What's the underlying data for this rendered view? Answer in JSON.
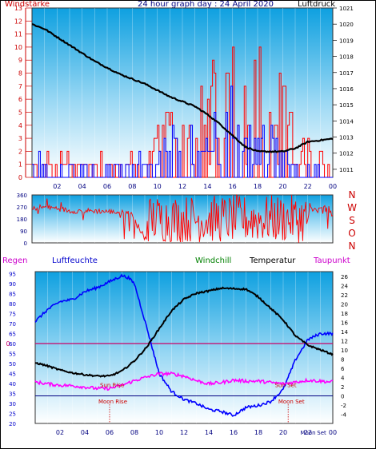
{
  "header": {
    "windstaerke": "Windstärke",
    "title": "24 hour graph day : 24 April 2020",
    "luftdruck": "Luftdruck"
  },
  "middle_header": {
    "regen": "Regen",
    "luftfeuchte": "Luftfeuchte",
    "windchill": "Windchill",
    "temperatur": "Temperatur",
    "taupunkt": "Taupunkt"
  },
  "colors": {
    "wind_speed": "#ff0000",
    "wind_gust": "#0000ff",
    "pressure": "#000000",
    "wind_direction": "#ff0000",
    "humidity": "#0000ff",
    "temperature": "#000000",
    "dewpoint": "#ff00ff",
    "rain_line": "#cc0066",
    "zero_line": "#000080",
    "axis_left": "#cc0000",
    "axis_right": "#000000",
    "panel_gradient_top": "#00a8e8",
    "panel_gradient_bottom": "#ffffff"
  },
  "chart_data": [
    {
      "type": "line",
      "panel": "wind-pressure",
      "x_ticks": [
        "02",
        "04",
        "06",
        "08",
        "10",
        "12",
        "14",
        "16",
        "18",
        "20",
        "22",
        "00"
      ],
      "left_axis": {
        "label": "Windstärke",
        "ylim": [
          0,
          13
        ],
        "ticks": [
          "0",
          "1",
          "2",
          "3",
          "4",
          "5",
          "6",
          "7",
          "8",
          "9",
          "10",
          "11",
          "12",
          "13"
        ]
      },
      "right_axis": {
        "label": "Luftdruck",
        "ylim": [
          1010.5,
          1021
        ],
        "ticks": [
          "1011",
          "1012",
          "1013",
          "1014",
          "1015",
          "1016",
          "1017",
          "1018",
          "1019",
          "1020",
          "1021"
        ]
      },
      "series": [
        {
          "name": "Luftdruck",
          "axis": "right",
          "x": [
            0.0,
            1.0,
            2.0,
            3.0,
            4.0,
            5.0,
            6.0,
            7.0,
            8.0,
            9.0,
            10.0,
            11.0,
            12.0,
            13.0,
            14.0,
            15.0,
            16.0,
            17.0,
            18.0,
            19.0,
            20.0,
            21.0,
            22.0,
            23.0,
            24.0
          ],
          "y": [
            1020.0,
            1019.7,
            1019.2,
            1018.7,
            1018.2,
            1017.7,
            1017.3,
            1016.9,
            1016.6,
            1016.3,
            1015.9,
            1015.5,
            1015.2,
            1014.9,
            1014.4,
            1013.8,
            1013.1,
            1012.4,
            1012.1,
            1012.1,
            1012.1,
            1012.3,
            1012.7,
            1012.8,
            1012.9
          ]
        }
      ],
      "wind_speed_profile": {
        "hours": [
          0,
          2,
          5,
          9,
          10,
          12,
          14,
          15,
          16,
          17,
          18,
          19,
          20,
          21,
          22,
          23,
          24
        ],
        "max": [
          2,
          2,
          2,
          2,
          4,
          6,
          8,
          11,
          12,
          12,
          11,
          9,
          8,
          4,
          3,
          2,
          2
        ]
      },
      "wind_gust_profile": {
        "hours": [
          0,
          2,
          5,
          9,
          10,
          12,
          14,
          15,
          16,
          17,
          18,
          19,
          20,
          21,
          22,
          24
        ],
        "max": [
          2,
          1,
          1,
          2,
          3,
          4,
          5,
          6,
          7,
          6,
          5,
          4,
          3,
          1,
          1,
          0
        ]
      }
    },
    {
      "type": "scatter",
      "panel": "wind-direction",
      "x_ticks": [
        "02",
        "04",
        "06",
        "08",
        "10",
        "12",
        "14",
        "16",
        "18",
        "20",
        "22",
        "00"
      ],
      "left_axis": {
        "ylim": [
          0,
          360
        ],
        "ticks": [
          "0",
          "90",
          "180",
          "270",
          "360"
        ]
      },
      "right_axis": {
        "ticks": [
          "N",
          "W",
          "S",
          "O",
          "N"
        ]
      },
      "direction_profile": {
        "hours": [
          0,
          0.5,
          2,
          3,
          5,
          7,
          8,
          9,
          10,
          24
        ],
        "base": [
          250,
          270,
          260,
          240,
          240,
          230,
          220,
          30,
          200,
          200
        ]
      }
    },
    {
      "type": "line",
      "panel": "temperature-humidity",
      "x_ticks": [
        "02",
        "04",
        "06",
        "08",
        "10",
        "12",
        "14",
        "16",
        "18",
        "20",
        "22",
        "00"
      ],
      "left_axis": {
        "label": "Luftfeuchte",
        "ylim": [
          20,
          96
        ],
        "ticks": [
          "20",
          "25",
          "30",
          "35",
          "40",
          "45",
          "50",
          "55",
          "60",
          "65",
          "70",
          "75",
          "80",
          "85",
          "90",
          "95"
        ]
      },
      "right_axis": {
        "label": "Temperatur",
        "ylim": [
          -6,
          27
        ],
        "ticks": [
          "-4",
          "-2",
          "0",
          "2",
          "4",
          "6",
          "8",
          "10",
          "12",
          "14",
          "16",
          "18",
          "20",
          "22",
          "24",
          "26"
        ]
      },
      "rain_axis": {
        "label": "Regen",
        "value_label": "0"
      },
      "series": [
        {
          "name": "Luftfeuchte",
          "axis": "left",
          "x": [
            0.0,
            1.0,
            2.0,
            3.0,
            4.0,
            5.0,
            6.0,
            7.0,
            7.5,
            8.0,
            9.0,
            10.0,
            11.0,
            12.0,
            13.0,
            14.0,
            15.0,
            16.0,
            17.0,
            18.0,
            19.0,
            20.0,
            21.0,
            22.0,
            23.0,
            24.0
          ],
          "y": [
            71,
            77,
            81,
            82,
            86,
            88,
            91,
            94,
            93,
            90,
            68,
            45,
            36,
            32,
            30,
            27,
            26,
            24,
            28,
            29,
            31,
            37,
            52,
            62,
            65,
            65
          ]
        },
        {
          "name": "Temperatur",
          "axis": "right",
          "x": [
            0.0,
            1.0,
            2.0,
            3.0,
            4.0,
            5.0,
            6.0,
            7.0,
            8.0,
            9.0,
            10.0,
            11.0,
            12.0,
            13.0,
            14.0,
            15.0,
            16.0,
            17.0,
            18.0,
            19.0,
            20.0,
            21.0,
            22.0,
            23.0,
            24.0
          ],
          "y": [
            7.2,
            6.5,
            5.6,
            5.0,
            4.6,
            4.3,
            4.3,
            5.4,
            7.6,
            10.6,
            14.6,
            18.5,
            21.0,
            22.3,
            22.8,
            23.4,
            23.3,
            23.2,
            21.5,
            19.0,
            16.5,
            13.0,
            11.0,
            10.0,
            9.0
          ]
        },
        {
          "name": "Taupunkt",
          "axis": "right",
          "x": [
            0.0,
            1.0,
            2.0,
            3.0,
            4.0,
            5.0,
            6.0,
            7.0,
            8.0,
            9.0,
            10.0,
            11.0,
            12.0,
            13.0,
            14.0,
            15.0,
            16.0,
            17.0,
            18.0,
            19.0,
            20.0,
            21.0,
            22.0,
            23.0,
            24.0
          ],
          "y": [
            3.0,
            2.6,
            2.3,
            2.2,
            1.9,
            1.6,
            1.6,
            2.3,
            3.3,
            4.1,
            4.8,
            4.8,
            4.3,
            3.3,
            2.6,
            2.9,
            3.4,
            3.2,
            3.2,
            2.9,
            2.6,
            3.0,
            3.4,
            3.2,
            3.0
          ]
        },
        {
          "name": "Windchill",
          "axis": "right",
          "note_label": ""
        }
      ],
      "rain_value": 0,
      "annotations": [
        {
          "text": "Sun Rise",
          "x": 6.2,
          "row": "upper"
        },
        {
          "text": "Sun Set",
          "x": 20.2,
          "row": "upper"
        },
        {
          "text": "Moon Rise",
          "x": 6.0,
          "row": "lower"
        },
        {
          "text": "Moon Set",
          "x": 20.4,
          "row": "lower"
        },
        {
          "text": "Moon",
          "x": 22.0,
          "row": "axis"
        },
        {
          "text": "Set",
          "x": 23.1,
          "row": "axis"
        }
      ]
    }
  ]
}
